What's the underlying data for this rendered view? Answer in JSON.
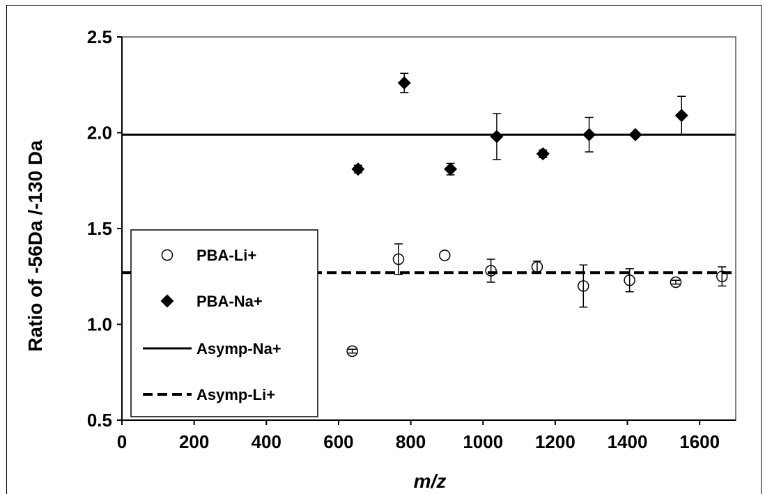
{
  "chart_data": {
    "type": "scatter",
    "xlabel": "m/z",
    "ylabel": "Ratio of -56Da /-130 Da",
    "xlim": [
      0,
      1700
    ],
    "ylim": [
      0.5,
      2.5
    ],
    "x_ticks": [
      "0",
      "200",
      "400",
      "600",
      "800",
      "1000",
      "1200",
      "1400",
      "1600"
    ],
    "y_ticks": [
      "0.5",
      "1.0",
      "1.5",
      "2.0",
      "2.5"
    ],
    "grid": false,
    "legend_position": "bottom-left",
    "series": [
      {
        "name": "PBA-Li+",
        "marker": "open-circle",
        "color": "#000000",
        "points": [
          {
            "x": 638,
            "y": 0.86,
            "err": 0.01
          },
          {
            "x": 766,
            "y": 1.34,
            "err": 0.08
          },
          {
            "x": 894,
            "y": 1.36,
            "err": 0.0
          },
          {
            "x": 1022,
            "y": 1.28,
            "err": 0.06
          },
          {
            "x": 1150,
            "y": 1.3,
            "err": 0.03
          },
          {
            "x": 1278,
            "y": 1.2,
            "err": 0.11
          },
          {
            "x": 1406,
            "y": 1.23,
            "err": 0.06
          },
          {
            "x": 1534,
            "y": 1.22,
            "err": 0.01
          },
          {
            "x": 1662,
            "y": 1.25,
            "err": 0.05
          }
        ]
      },
      {
        "name": "PBA-Na+",
        "marker": "filled-diamond",
        "color": "#000000",
        "points": [
          {
            "x": 654,
            "y": 1.81,
            "err": 0.02
          },
          {
            "x": 782,
            "y": 2.26,
            "err": 0.05
          },
          {
            "x": 910,
            "y": 1.81,
            "err": 0.03
          },
          {
            "x": 1038,
            "y": 1.98,
            "err": 0.12
          },
          {
            "x": 1166,
            "y": 1.89,
            "err": 0.02
          },
          {
            "x": 1294,
            "y": 1.99,
            "err": 0.09
          },
          {
            "x": 1422,
            "y": 1.99,
            "err": 0.0
          },
          {
            "x": 1550,
            "y": 2.09,
            "err": 0.1
          }
        ]
      },
      {
        "name": "Asymp-Na+",
        "type": "hline",
        "style": "solid",
        "y": 1.99
      },
      {
        "name": "Asymp-Li+",
        "type": "hline",
        "style": "dashed",
        "y": 1.27
      }
    ]
  }
}
